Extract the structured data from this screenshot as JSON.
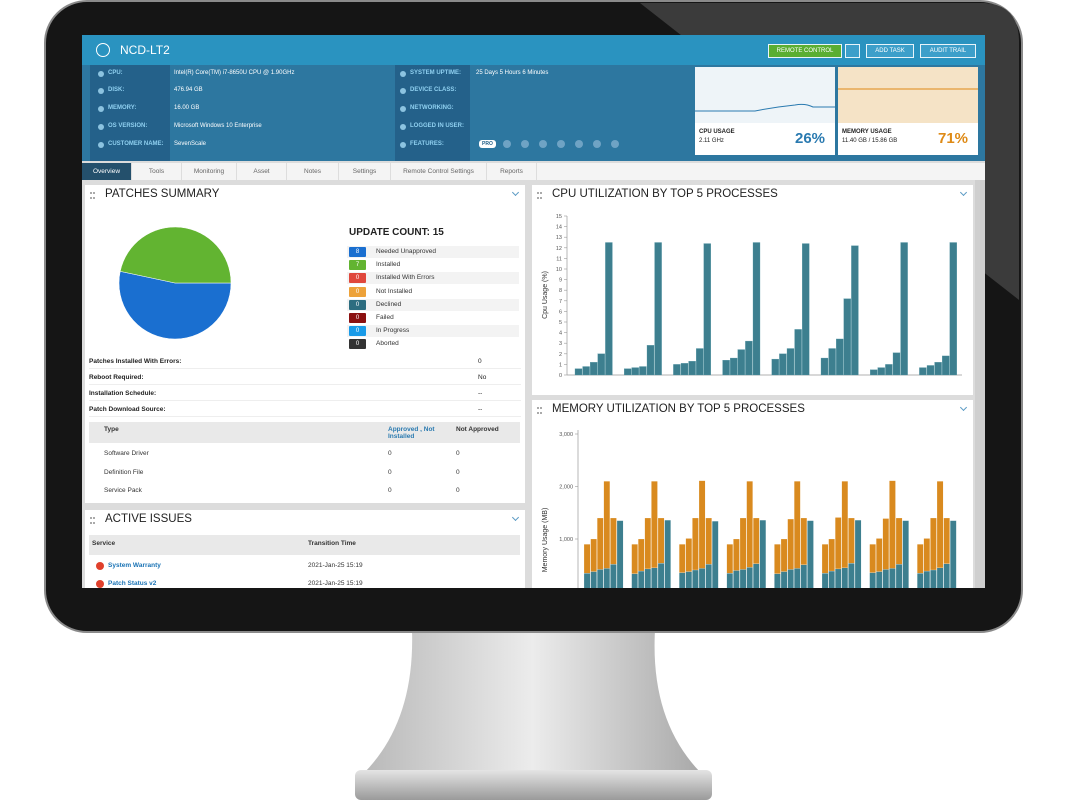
{
  "header": {
    "title": "NCD-LT2",
    "buttons": [
      "REMOTE CONTROL",
      "ADD TASK",
      "AUDIT TRAIL"
    ]
  },
  "info": {
    "left": [
      {
        "label": "CPU:",
        "value": "Intel(R) Core(TM) i7-8650U CPU @ 1.90GHz"
      },
      {
        "label": "DISK:",
        "value": "476.94 GB"
      },
      {
        "label": "MEMORY:",
        "value": "16.00 GB"
      },
      {
        "label": "OS VERSION:",
        "value": "Microsoft Windows 10 Enterprise"
      },
      {
        "label": "CUSTOMER NAME:",
        "value": "SevenScale"
      }
    ],
    "right": [
      {
        "label": "SYSTEM UPTIME:",
        "value": "25 Days 5 Hours 6 Minutes"
      },
      {
        "label": "DEVICE CLASS:"
      },
      {
        "label": "NETWORKING:"
      },
      {
        "label": "LOGGED IN USER:"
      },
      {
        "label": "FEATURES:"
      }
    ],
    "features_badge": "PRO"
  },
  "usage": [
    {
      "label": "CPU USAGE",
      "detail": "2.11 GHz",
      "percent": "26%",
      "color": "#2a7ab0"
    },
    {
      "label": "MEMORY USAGE",
      "detail": "11.40 GB / 15.86 GB",
      "percent": "71%",
      "color": "#de8a16"
    }
  ],
  "tabs": [
    "Overview",
    "Tools",
    "Monitoring",
    "Asset",
    "Notes",
    "Settings",
    "Remote Control Settings",
    "Reports"
  ],
  "active_tab": 0,
  "patches": {
    "title": "PATCHES SUMMARY",
    "update_count": "UPDATE COUNT: 15",
    "statuses": [
      {
        "count": 8,
        "label": "Needed Unapproved",
        "color": "#1a6fd0"
      },
      {
        "count": 7,
        "label": "Installed",
        "color": "#62b431"
      },
      {
        "count": 0,
        "label": "Installed With Errors",
        "color": "#e0473c"
      },
      {
        "count": 0,
        "label": "Not Installed",
        "color": "#eda23a"
      },
      {
        "count": 0,
        "label": "Declined",
        "color": "#2c6d80"
      },
      {
        "count": 0,
        "label": "Failed",
        "color": "#8b1010"
      },
      {
        "count": 0,
        "label": "In Progress",
        "color": "#1a9be8"
      },
      {
        "count": 0,
        "label": "Aborted",
        "color": "#333333"
      }
    ],
    "details": [
      {
        "label": "Patches Installed With Errors:",
        "value": "0"
      },
      {
        "label": "Reboot Required:",
        "value": "No"
      },
      {
        "label": "Installation Schedule:",
        "value": "--"
      },
      {
        "label": "Patch Download Source:",
        "value": "--"
      }
    ],
    "table": {
      "headers": [
        "Type",
        "Approved , Not Installed",
        "Not Approved"
      ],
      "rows": [
        [
          "Software Driver",
          "0",
          "0"
        ],
        [
          "Definition File",
          "0",
          "0"
        ],
        [
          "Service Pack",
          "0",
          "0"
        ]
      ]
    }
  },
  "issues": {
    "title": "ACTIVE ISSUES",
    "headers": [
      "Service",
      "Transition Time"
    ],
    "rows": [
      [
        "System Warranty",
        "2021-Jan-25 15:19"
      ],
      [
        "Patch Status v2",
        "2021-Jan-25 15:19"
      ]
    ]
  },
  "cpu_chart": {
    "title": "CPU UTILIZATION BY TOP 5 PROCESSES",
    "y_label": "Cpu Usage (%)",
    "ylim": [
      0,
      15
    ],
    "yticks": [
      0,
      1,
      2,
      3,
      4,
      5,
      6,
      7,
      8,
      9,
      10,
      11,
      12,
      13,
      14,
      15
    ],
    "color": "#3d7f8f",
    "groups": [
      [
        0.6,
        0.8,
        1.2,
        2.0,
        12.5
      ],
      [
        0.6,
        0.7,
        0.8,
        2.8,
        12.5
      ],
      [
        1.0,
        1.1,
        1.3,
        2.5,
        12.4
      ],
      [
        1.4,
        1.6,
        2.4,
        3.2,
        12.5
      ],
      [
        1.5,
        2.0,
        2.5,
        4.3,
        12.4
      ],
      [
        1.6,
        2.5,
        3.4,
        7.2,
        12.2
      ],
      [
        0.5,
        0.7,
        1.0,
        2.1,
        12.5
      ],
      [
        0.7,
        0.9,
        1.2,
        1.8,
        12.5
      ]
    ]
  },
  "memory_chart": {
    "title": "MEMORY UTILIZATION BY TOP 5 PROCESSES",
    "y_label": "Memory Usage (MB)",
    "ylim": [
      0,
      3000
    ],
    "yticks": [
      {
        "value": 1000,
        "label": "1,000"
      },
      {
        "value": 2000,
        "label": "2,000"
      },
      {
        "value": 3000,
        "label": "3,000"
      }
    ],
    "series": [
      {
        "color": "#3d7f8f",
        "groups": [
          [
            350,
            380,
            420,
            440,
            520,
            1350
          ],
          [
            340,
            390,
            430,
            450,
            540,
            1360
          ],
          [
            360,
            380,
            410,
            440,
            520,
            1340
          ],
          [
            350,
            400,
            420,
            460,
            530,
            1360
          ],
          [
            340,
            380,
            420,
            440,
            510,
            1350
          ],
          [
            350,
            390,
            430,
            450,
            540,
            1360
          ],
          [
            360,
            380,
            420,
            440,
            520,
            1350
          ],
          [
            350,
            390,
            410,
            450,
            530,
            1350
          ]
        ]
      },
      {
        "color": "#d98a1f",
        "groups": [
          [
            550,
            620,
            980,
            1660,
            880,
            0
          ],
          [
            560,
            610,
            970,
            1650,
            860,
            0
          ],
          [
            540,
            630,
            990,
            1670,
            880,
            0
          ],
          [
            550,
            600,
            980,
            1640,
            870,
            0
          ],
          [
            560,
            620,
            960,
            1660,
            890,
            0
          ],
          [
            550,
            610,
            980,
            1650,
            860,
            0
          ],
          [
            540,
            630,
            970,
            1670,
            880,
            0
          ],
          [
            550,
            620,
            990,
            1650,
            870,
            0
          ]
        ]
      }
    ]
  }
}
